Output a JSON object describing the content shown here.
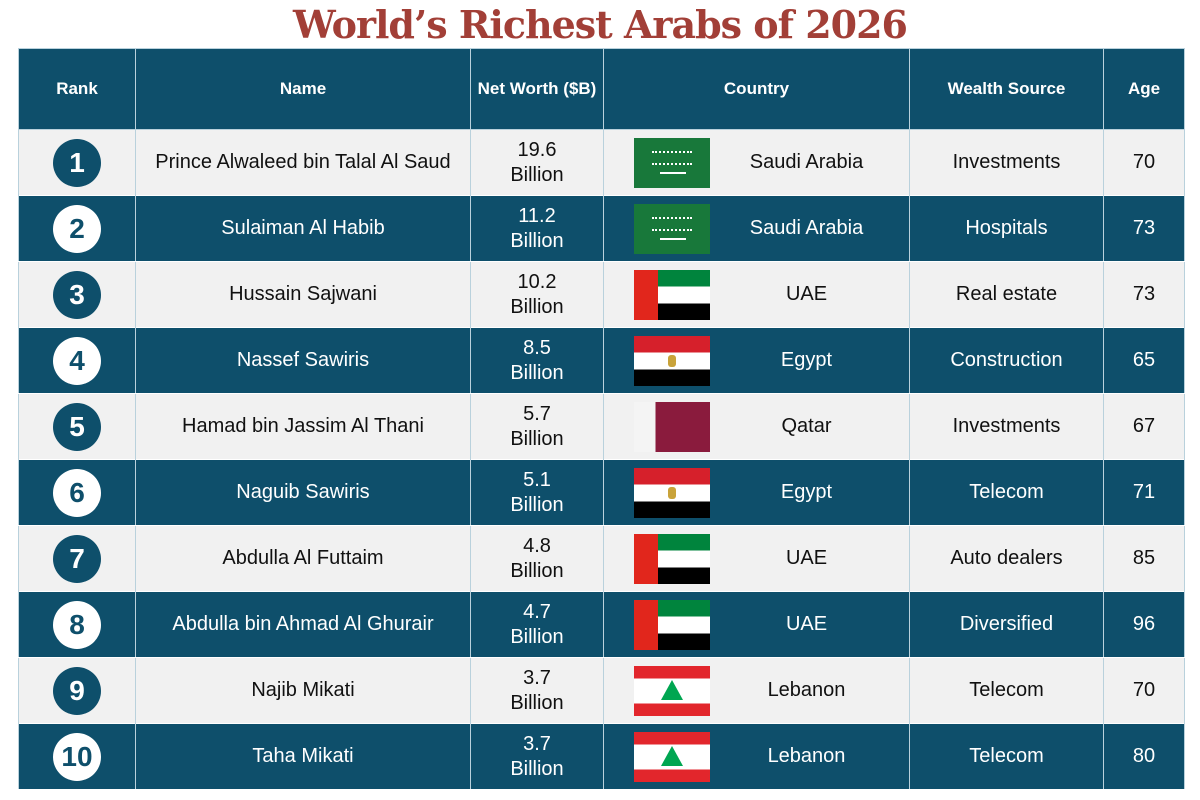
{
  "title": "World’s Richest Arabs of 2026",
  "headers": {
    "rank": "Rank",
    "name": "Name",
    "net_worth": "Net Worth ($B)",
    "country": "Country",
    "source": "Wealth Source",
    "age": "Age"
  },
  "colors": {
    "header": "#0e4f6b",
    "title": "#a23f37",
    "light_row": "#f1f1f1"
  },
  "rows": [
    {
      "rank": "1",
      "name": "Prince Alwaleed bin Talal Al Saud",
      "worth": "19.6",
      "unit": "Billion",
      "country": "Saudi Arabia",
      "flag": "saudi",
      "source": "Investments",
      "age": "70"
    },
    {
      "rank": "2",
      "name": "Sulaiman Al Habib",
      "worth": "11.2",
      "unit": "Billion",
      "country": "Saudi Arabia",
      "flag": "saudi",
      "source": "Hospitals",
      "age": "73"
    },
    {
      "rank": "3",
      "name": "Hussain Sajwani",
      "worth": "10.2",
      "unit": "Billion",
      "country": "UAE",
      "flag": "uae",
      "source": "Real estate",
      "age": "73"
    },
    {
      "rank": "4",
      "name": "Nassef Sawiris",
      "worth": "8.5",
      "unit": "Billion",
      "country": "Egypt",
      "flag": "egypt",
      "source": "Construction",
      "age": "65"
    },
    {
      "rank": "5",
      "name": "Hamad bin Jassim Al Thani",
      "worth": "5.7",
      "unit": "Billion",
      "country": "Qatar",
      "flag": "qatar",
      "source": "Investments",
      "age": "67"
    },
    {
      "rank": "6",
      "name": "Naguib Sawiris",
      "worth": "5.1",
      "unit": "Billion",
      "country": "Egypt",
      "flag": "egypt",
      "source": "Telecom",
      "age": "71"
    },
    {
      "rank": "7",
      "name": "Abdulla Al Futtaim",
      "worth": "4.8",
      "unit": "Billion",
      "country": "UAE",
      "flag": "uae",
      "source": "Auto dealers",
      "age": "85"
    },
    {
      "rank": "8",
      "name": "Abdulla bin Ahmad Al Ghurair",
      "worth": "4.7",
      "unit": "Billion",
      "country": "UAE",
      "flag": "uae",
      "source": "Diversified",
      "age": "96"
    },
    {
      "rank": "9",
      "name": "Najib Mikati",
      "worth": "3.7",
      "unit": "Billion",
      "country": "Lebanon",
      "flag": "lebanon",
      "source": "Telecom",
      "age": "70"
    },
    {
      "rank": "10",
      "name": "Taha Mikati",
      "worth": "3.7",
      "unit": "Billion",
      "country": "Lebanon",
      "flag": "lebanon",
      "source": "Telecom",
      "age": "80"
    }
  ]
}
